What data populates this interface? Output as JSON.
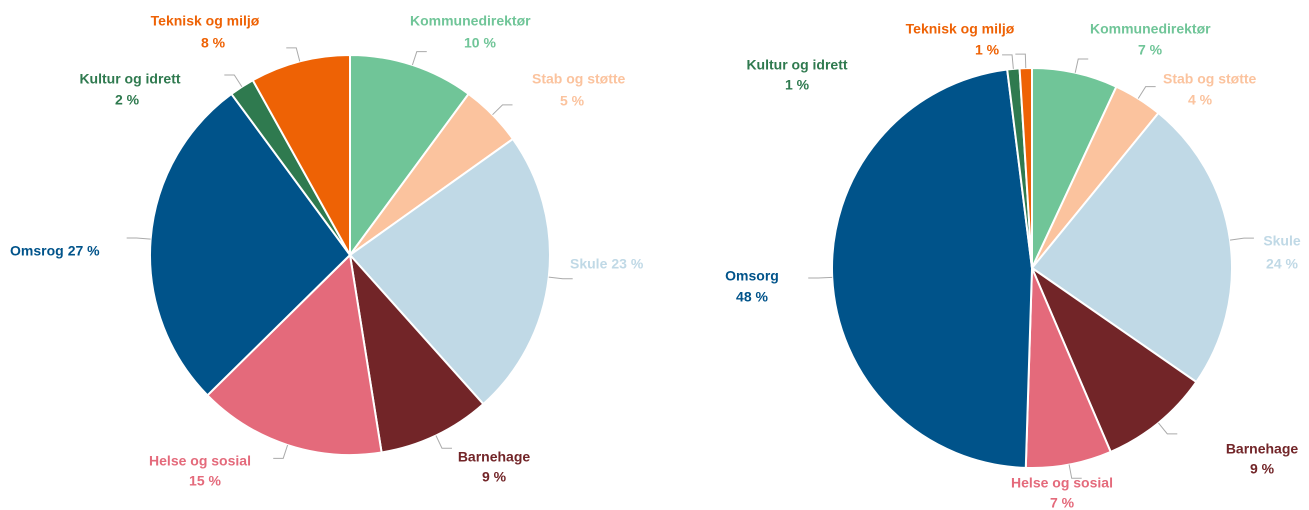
{
  "chart_data": [
    {
      "type": "pie",
      "categories": [
        "Kommunedirektør",
        "Stab og støtte",
        "Skule",
        "Barnehage",
        "Helse og sosial",
        "Omsrog",
        "Kultur og idrett",
        "Teknisk og miljø"
      ],
      "values": [
        10,
        5,
        23,
        9,
        15,
        27,
        2,
        8
      ],
      "value_labels": [
        "10 %",
        "5 %",
        "23 %",
        "9 %",
        "15 %",
        "27 %",
        "2 %",
        "8 %"
      ],
      "colors": [
        "#70c598",
        "#fbc39e",
        "#c0d9e6",
        "#722528",
        "#e46a7b",
        "#00538a",
        "#2f7a4f",
        "#ee6205"
      ]
    },
    {
      "type": "pie",
      "categories": [
        "Kommunedirektør",
        "Stab og støtte",
        "Skule",
        "Barnehage",
        "Helse og sosial",
        "Omsorg",
        "Kultur og idrett",
        "Teknisk og miljø"
      ],
      "values": [
        7,
        4,
        24,
        9,
        7,
        48,
        1,
        1
      ],
      "value_labels": [
        "7 %",
        "4 %",
        "24 %",
        "9 %",
        "7 %",
        "48 %",
        "1 %",
        "1 %"
      ],
      "colors": [
        "#70c598",
        "#fbc39e",
        "#c0d9e6",
        "#722528",
        "#e46a7b",
        "#00538a",
        "#2f7a4f",
        "#ee6205"
      ]
    }
  ]
}
